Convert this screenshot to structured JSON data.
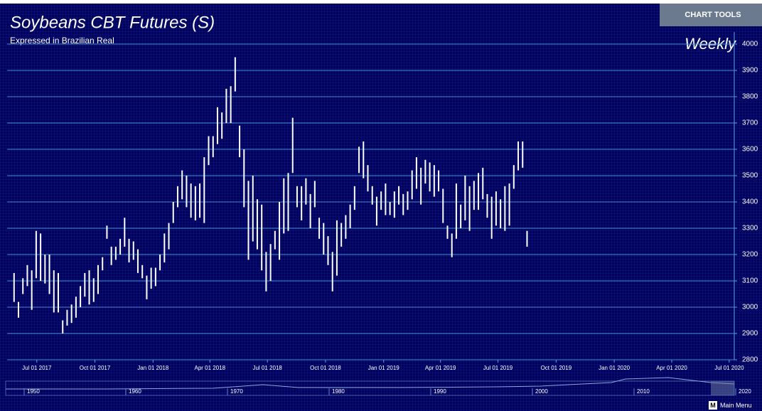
{
  "chart_data": {
    "type": "hilo",
    "title": "Soybeans CBT Futures (S)",
    "subtitle": "Expressed in Brazilian Real",
    "interval": "Weekly",
    "color": "#ffffff",
    "grid": true,
    "ylim": [
      2800,
      4000
    ],
    "yticks": [
      2800,
      2900,
      3000,
      3100,
      3200,
      3300,
      3400,
      3500,
      3600,
      3700,
      3800,
      3900,
      4000
    ],
    "xlim": [
      "2017-05-15",
      "2020-07-09"
    ],
    "xticks": [
      {
        "value": "2017-07-01",
        "label": "Jul 01 2017"
      },
      {
        "value": "2017-10-01",
        "label": "Oct 01 2017"
      },
      {
        "value": "2018-01-01",
        "label": "Jan 01 2018"
      },
      {
        "value": "2018-04-01",
        "label": "Apr 01 2018"
      },
      {
        "value": "2018-07-01",
        "label": "Jul 01 2018"
      },
      {
        "value": "2018-10-01",
        "label": "Oct 01 2018"
      },
      {
        "value": "2019-01-01",
        "label": "Jan 01 2019"
      },
      {
        "value": "2019-04-01",
        "label": "Apr 01 2019"
      },
      {
        "value": "2019-07-01",
        "label": "Jul 01 2019"
      },
      {
        "value": "2019-10-01",
        "label": "Oct 01 2019"
      },
      {
        "value": "2020-01-01",
        "label": "Jan 01 2020"
      },
      {
        "value": "2020-04-01",
        "label": "Apr 01 2020"
      },
      {
        "value": "2020-07-01",
        "label": "Jul 01 2020"
      }
    ],
    "x": [
      "2017-05-26",
      "2017-06-02",
      "2017-06-09",
      "2017-06-16",
      "2017-06-23",
      "2017-06-30",
      "2017-07-07",
      "2017-07-14",
      "2017-07-21",
      "2017-07-28",
      "2017-08-04",
      "2017-08-11",
      "2017-08-18",
      "2017-08-25",
      "2017-09-01",
      "2017-09-08",
      "2017-09-15",
      "2017-09-22",
      "2017-09-29",
      "2017-10-06",
      "2017-10-13",
      "2017-10-20",
      "2017-10-27",
      "2017-11-03",
      "2017-11-10",
      "2017-11-17",
      "2017-11-24",
      "2017-12-01",
      "2017-12-08",
      "2017-12-15",
      "2017-12-22",
      "2017-12-29",
      "2018-01-05",
      "2018-01-12",
      "2018-01-19",
      "2018-01-26",
      "2018-02-02",
      "2018-02-09",
      "2018-02-16",
      "2018-02-23",
      "2018-03-02",
      "2018-03-09",
      "2018-03-16",
      "2018-03-23",
      "2018-03-30",
      "2018-04-06",
      "2018-04-13",
      "2018-04-20",
      "2018-04-27",
      "2018-05-04",
      "2018-05-11",
      "2018-05-18",
      "2018-05-25",
      "2018-06-01",
      "2018-06-08",
      "2018-06-15",
      "2018-06-22",
      "2018-06-29",
      "2018-07-06",
      "2018-07-13",
      "2018-07-20",
      "2018-07-27",
      "2018-08-03",
      "2018-08-10",
      "2018-08-17",
      "2018-08-24",
      "2018-08-31",
      "2018-09-07",
      "2018-09-14",
      "2018-09-21",
      "2018-09-28",
      "2018-10-05",
      "2018-10-12",
      "2018-10-19",
      "2018-10-26",
      "2018-11-02",
      "2018-11-09",
      "2018-11-16",
      "2018-11-23",
      "2018-11-30",
      "2018-12-07",
      "2018-12-14",
      "2018-12-21",
      "2018-12-28",
      "2019-01-04",
      "2019-01-11",
      "2019-01-18",
      "2019-01-25",
      "2019-02-01",
      "2019-02-08",
      "2019-02-15",
      "2019-02-22",
      "2019-03-01",
      "2019-03-08",
      "2019-03-15",
      "2019-03-22",
      "2019-03-29",
      "2019-04-05",
      "2019-04-12",
      "2019-04-19",
      "2019-04-26",
      "2019-05-03",
      "2019-05-10",
      "2019-05-17",
      "2019-05-24",
      "2019-05-31",
      "2019-06-07",
      "2019-06-14",
      "2019-06-21",
      "2019-06-28",
      "2019-07-05",
      "2019-07-12",
      "2019-07-19",
      "2019-07-26",
      "2019-08-02",
      "2019-08-09",
      "2019-08-16"
    ],
    "high": [
      3130,
      3020,
      3110,
      3160,
      3140,
      3290,
      3280,
      3200,
      3200,
      3140,
      3130,
      2950,
      2990,
      3010,
      3040,
      3080,
      3130,
      3140,
      3110,
      3160,
      3190,
      3310,
      3230,
      3230,
      3260,
      3340,
      3260,
      3250,
      3220,
      3160,
      3120,
      3150,
      3150,
      3200,
      3280,
      3320,
      3400,
      3460,
      3520,
      3500,
      3470,
      3460,
      3470,
      3570,
      3650,
      3650,
      3760,
      3740,
      3830,
      3840,
      3950,
      3690,
      3600,
      3480,
      3500,
      3410,
      3390,
      3210,
      3240,
      3290,
      3400,
      3490,
      3510,
      3720,
      3460,
      3460,
      3490,
      3430,
      3480,
      3340,
      3320,
      3270,
      3210,
      3330,
      3320,
      3350,
      3390,
      3460,
      3610,
      3630,
      3540,
      3460,
      3420,
      3440,
      3470,
      3400,
      3440,
      3460,
      3430,
      3440,
      3520,
      3570,
      3530,
      3560,
      3550,
      3540,
      3520,
      3450,
      3310,
      3280,
      3470,
      3390,
      3500,
      3460,
      3480,
      3510,
      3530,
      3430,
      3420,
      3440,
      3410,
      3460,
      3470,
      3540,
      3630,
      3630,
      3290
    ],
    "low": [
      3020,
      2960,
      3050,
      3080,
      2990,
      3110,
      3100,
      3090,
      3050,
      2980,
      2980,
      2900,
      2930,
      2940,
      2960,
      3000,
      3040,
      3010,
      3020,
      3050,
      3140,
      3260,
      3160,
      3180,
      3200,
      3230,
      3170,
      3180,
      3130,
      3110,
      3030,
      3070,
      3080,
      3140,
      3170,
      3220,
      3320,
      3380,
      3410,
      3380,
      3340,
      3330,
      3340,
      3320,
      3540,
      3570,
      3620,
      3640,
      3700,
      3700,
      3820,
      3570,
      3380,
      3180,
      3250,
      3220,
      3140,
      3060,
      3100,
      3220,
      3180,
      3280,
      3290,
      3510,
      3380,
      3330,
      3390,
      3300,
      3380,
      3260,
      3200,
      3160,
      3060,
      3120,
      3230,
      3260,
      3300,
      3370,
      3510,
      3490,
      3440,
      3390,
      3310,
      3370,
      3350,
      3350,
      3340,
      3390,
      3350,
      3370,
      3410,
      3450,
      3390,
      3470,
      3440,
      3420,
      3440,
      3320,
      3260,
      3190,
      3260,
      3300,
      3330,
      3290,
      3370,
      3370,
      3410,
      3340,
      3260,
      3310,
      3300,
      3290,
      3310,
      3450,
      3520,
      3530,
      3230
    ]
  },
  "navigator": {
    "labels": [
      "1950",
      "1960",
      "1970",
      "1980",
      "1990",
      "2000",
      "2010",
      "2020"
    ]
  },
  "ui": {
    "chart_tools": "CHART TOOLS",
    "menu_key": "M",
    "main_menu": "Main Menu"
  }
}
